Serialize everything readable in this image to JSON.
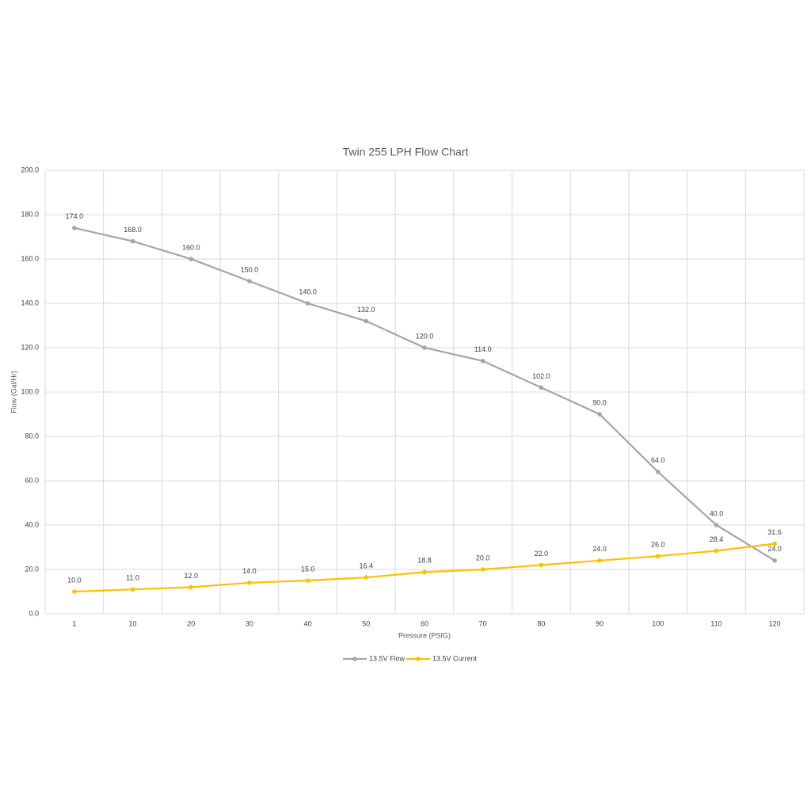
{
  "chart_data": {
    "type": "line",
    "title": "Twin 255 LPH Flow Chart",
    "x_label": "Pressure (PSIG)",
    "y_label": "Flow (Gal/Hr)",
    "categories": [
      "1",
      "10",
      "20",
      "30",
      "40",
      "50",
      "60",
      "70",
      "80",
      "90",
      "100",
      "110",
      "120"
    ],
    "series": [
      {
        "name": "13.5V Flow",
        "color": "#a5a5a5",
        "values": [
          174,
          168,
          160,
          150,
          140,
          132,
          120,
          114,
          102,
          90,
          64,
          40,
          24
        ],
        "value_labels": [
          "174.0",
          "168.0",
          "160.0",
          "150.0",
          "140.0",
          "132.0",
          "120.0",
          "114.0",
          "102.0",
          "90.0",
          "64.0",
          "40.0",
          "24.0"
        ]
      },
      {
        "name": "13.5V Current",
        "color": "#ffc000",
        "values": [
          10,
          11,
          12,
          14,
          15,
          16.4,
          18.8,
          20,
          22,
          24,
          26,
          28.4,
          31.6
        ],
        "value_labels": [
          "10.0",
          "11.0",
          "12.0",
          "14.0",
          "15.0",
          "16.4",
          "18.8",
          "20.0",
          "22.0",
          "24.0",
          "26.0",
          "28.4",
          "31.6"
        ]
      }
    ],
    "ylim": [
      0,
      200
    ],
    "yticks": [
      {
        "value": 0,
        "label": "0.0"
      },
      {
        "value": 20,
        "label": "20.0"
      },
      {
        "value": 40,
        "label": "40.0"
      },
      {
        "value": 60,
        "label": "60.0"
      },
      {
        "value": 80,
        "label": "80.0"
      },
      {
        "value": 100,
        "label": "100.0"
      },
      {
        "value": 120,
        "label": "120.0"
      },
      {
        "value": 140,
        "label": "140.0"
      },
      {
        "value": 160,
        "label": "160.0"
      },
      {
        "value": 180,
        "label": "180.0"
      },
      {
        "value": 200,
        "label": "200.0"
      }
    ],
    "grid": true,
    "legend": "bottom"
  }
}
